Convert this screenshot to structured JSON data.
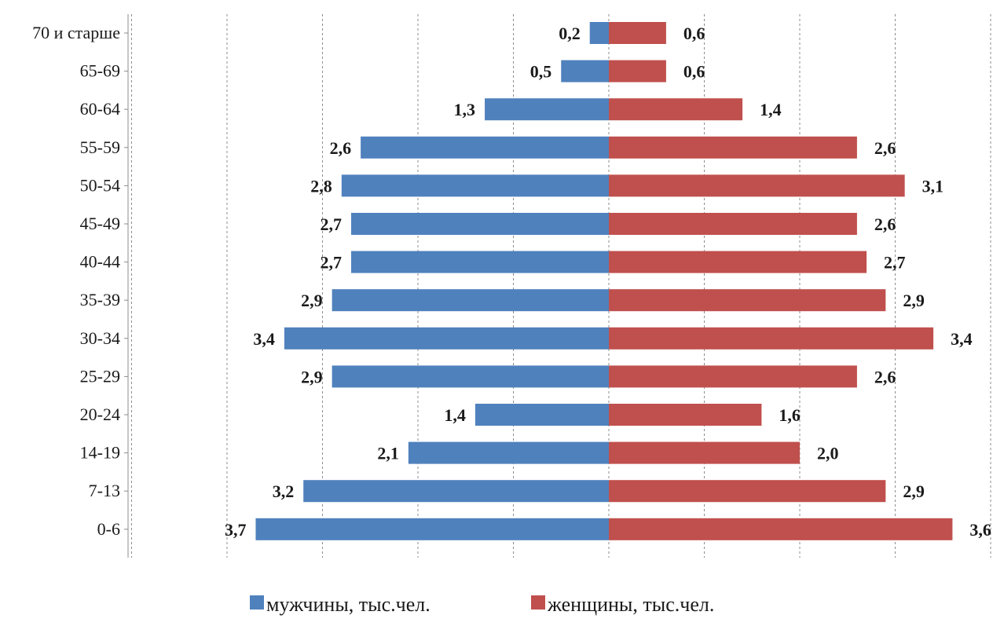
{
  "chart_data": {
    "type": "bar",
    "orientation": "horizontal",
    "layout": "population-pyramid",
    "categories": [
      "70 и старше",
      "65-69",
      "60-64",
      "55-59",
      "50-54",
      "45-49",
      "40-44",
      "35-39",
      "30-34",
      "25-29",
      "20-24",
      "14-19",
      "7-13",
      "0-6"
    ],
    "series": [
      {
        "name": "мужчины, тыс.чел.",
        "color": "#4f81bd",
        "side": "left",
        "values": [
          0.2,
          0.5,
          1.3,
          2.6,
          2.8,
          2.7,
          2.7,
          2.9,
          3.4,
          2.9,
          1.4,
          2.1,
          3.2,
          3.7
        ],
        "labels": [
          "0,2",
          "0,5",
          "1,3",
          "2,6",
          "2,8",
          "2,7",
          "2,7",
          "2,9",
          "3,4",
          "2,9",
          "1,4",
          "2,1",
          "3,2",
          "3,7"
        ]
      },
      {
        "name": "женщины, тыс.чел.",
        "color": "#c0504d",
        "side": "right",
        "values": [
          0.6,
          0.6,
          1.4,
          2.6,
          3.1,
          2.6,
          2.7,
          2.9,
          3.4,
          2.6,
          1.6,
          2.0,
          2.9,
          3.6
        ],
        "labels": [
          "0,6",
          "0,6",
          "1,4",
          "2,6",
          "3,1",
          "2,6",
          "2,7",
          "2,9",
          "3,4",
          "2,6",
          "1,6",
          "2,0",
          "2,9",
          "3,6"
        ]
      }
    ],
    "xlim": [
      -5,
      4
    ],
    "grid": true,
    "legend_position": "bottom"
  }
}
